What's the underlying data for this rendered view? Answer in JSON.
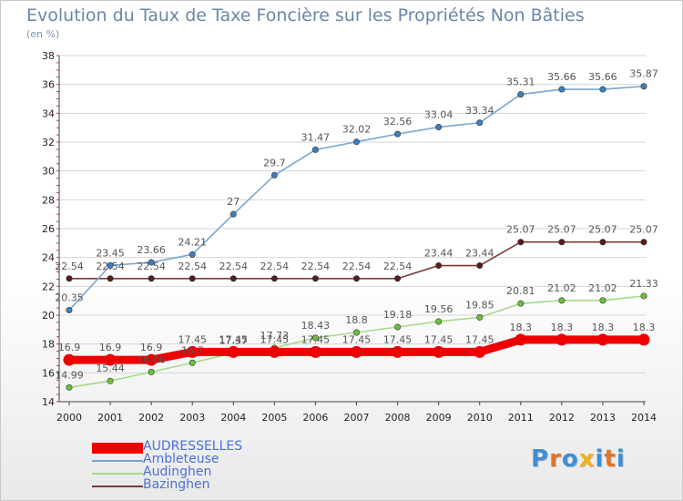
{
  "title": "Evolution du Taux de Taxe Foncière sur les Propriétés Non Bâties",
  "subtitle": "(en %)",
  "logo": {
    "text": "Proxiti",
    "colors": [
      "#3f8fd6",
      "#e0752a",
      "#3f8fd6",
      "#f2b01e",
      "#3f8fd6",
      "#e0752a",
      "#3f8fd6"
    ]
  },
  "chart_data": {
    "type": "line",
    "x": [
      "2000",
      "2001",
      "2002",
      "2003",
      "2004",
      "2005",
      "2006",
      "2007",
      "2008",
      "2009",
      "2010",
      "2011",
      "2012",
      "2013",
      "2014"
    ],
    "ylim": [
      14,
      38
    ],
    "yticks": [
      14,
      16,
      18,
      20,
      22,
      24,
      26,
      28,
      30,
      32,
      34,
      36,
      38
    ],
    "grid": true,
    "legend_position": "bottom-left",
    "series": [
      {
        "name": "AUDRESSELLES",
        "color": "#ee0000",
        "marker_color": "#ee0000",
        "values": [
          16.9,
          16.9,
          16.9,
          17.45,
          17.45,
          17.45,
          17.45,
          17.45,
          17.45,
          17.45,
          17.45,
          18.3,
          18.3,
          18.3,
          18.3
        ],
        "labels": [
          "16.9",
          "16.9",
          "16.9",
          "17.45",
          "17.45",
          "17.45",
          "17.45",
          "17.45",
          "17.45",
          "17.45",
          "17.45",
          "18.3",
          "18.3",
          "18.3",
          "18.3"
        ]
      },
      {
        "name": "Ambleteuse",
        "color": "#7aa6cf",
        "marker_color": "#3d7fbf",
        "values": [
          20.35,
          23.45,
          23.66,
          24.21,
          27,
          29.7,
          31.47,
          32.02,
          32.56,
          33.04,
          33.34,
          35.31,
          35.66,
          35.66,
          35.87
        ],
        "labels": [
          "20.35",
          "23.45",
          "23.66",
          "24.21",
          "27",
          "29.7",
          "31.47",
          "32.02",
          "32.56",
          "33.04",
          "33.34",
          "35.31",
          "35.66",
          "35.66",
          "35.87"
        ]
      },
      {
        "name": "Audinghen",
        "color": "#a6d98a",
        "marker_color": "#6cc13c",
        "values": [
          14.99,
          15.44,
          16.06,
          16.7,
          17.37,
          17.73,
          18.43,
          18.8,
          19.18,
          19.56,
          19.85,
          20.81,
          21.02,
          21.02,
          21.33
        ],
        "labels": [
          "14.99",
          "15.44",
          "16.06",
          "16.7",
          "17.37",
          "17.73",
          "18.43",
          "18.8",
          "19.18",
          "19.56",
          "19.85",
          "20.81",
          "21.02",
          "21.02",
          "21.33"
        ]
      },
      {
        "name": "Bazinghen",
        "color": "#7a3a3a",
        "marker_color": "#5a1a1a",
        "values": [
          22.54,
          22.54,
          22.54,
          22.54,
          22.54,
          22.54,
          22.54,
          22.54,
          22.54,
          23.44,
          23.44,
          25.07,
          25.07,
          25.07,
          25.07
        ],
        "labels": [
          "22.54",
          "22.54",
          "22.54",
          "22.54",
          "22.54",
          "22.54",
          "22.54",
          "22.54",
          "22.54",
          "23.44",
          "23.44",
          "25.07",
          "25.07",
          "25.07",
          "25.07"
        ]
      }
    ]
  }
}
